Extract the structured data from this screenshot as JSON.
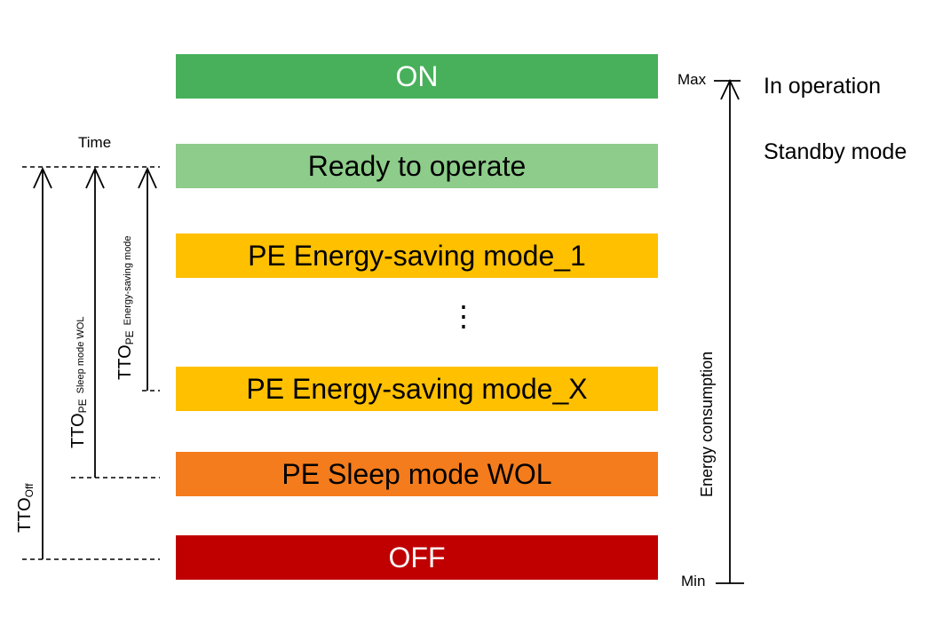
{
  "levels": [
    {
      "label": "ON",
      "color": "#48b05a"
    },
    {
      "label": "Ready to operate",
      "color": "#8dcc8a"
    },
    {
      "label": "PE Energy-saving mode_1",
      "color": "#ffc000"
    },
    {
      "label": "PE Energy-saving mode_X",
      "color": "#ffc000"
    },
    {
      "label": "PE Sleep mode WOL",
      "color": "#f47c1c"
    },
    {
      "label": "OFF",
      "color": "#c00000"
    }
  ],
  "ellipsis": "⋮",
  "left_axis": {
    "label": "Time"
  },
  "tto": [
    {
      "main": "TTO",
      "sub": "Off",
      "rest": ""
    },
    {
      "main": "TTO",
      "sub": "PE",
      "rest": "Sleep mode WOL"
    },
    {
      "main": "TTO",
      "sub": "PE",
      "rest": "Energy-saving mode"
    }
  ],
  "right_axis": {
    "label": "Energy consumption",
    "max_label": "Max",
    "min_label": "Min"
  },
  "states": {
    "in_operation": "In operation",
    "standby": "Standby mode"
  }
}
